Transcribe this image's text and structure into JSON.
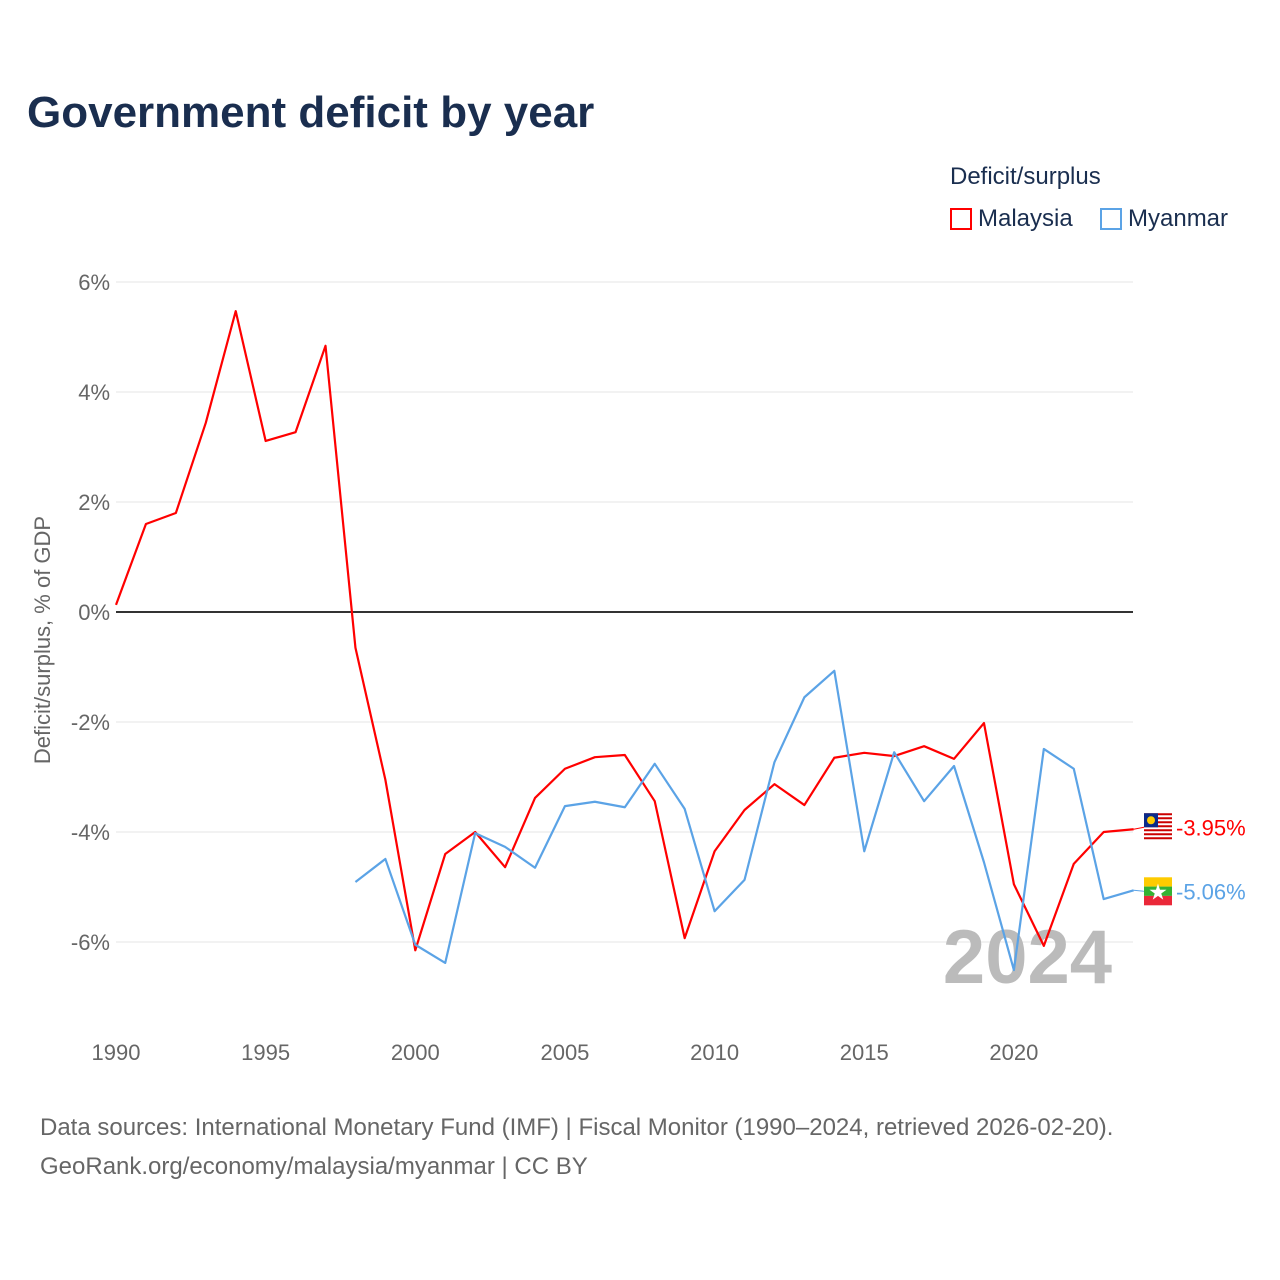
{
  "title": "Government deficit by year",
  "legend": {
    "title": "Deficit/surplus",
    "items": [
      {
        "name": "Malaysia",
        "color": "#ff0000"
      },
      {
        "name": "Myanmar",
        "color": "#5ba3e6"
      }
    ]
  },
  "source_lines": [
    "Data sources: International Monetary Fund (IMF) | Fiscal Monitor (1990–2024, retrieved 2026-02-20).",
    "GeoRank.org/economy/malaysia/myanmar | CC BY"
  ],
  "chart_data": {
    "type": "line",
    "title": "Government deficit by year",
    "xlabel": "",
    "ylabel": "Deficit/surplus, % of GDP",
    "xlim": [
      1990,
      2024
    ],
    "ylim": [
      -7,
      6
    ],
    "yticks": [
      6,
      4,
      2,
      0,
      -2,
      -4,
      -6
    ],
    "ytick_labels": [
      "6%",
      "4%",
      "2%",
      "0%",
      "-2%",
      "-4%",
      "-6%"
    ],
    "xticks": [
      1990,
      1995,
      2000,
      2005,
      2010,
      2015,
      2020
    ],
    "xtick_labels": [
      "1990",
      "1995",
      "2000",
      "2005",
      "2010",
      "2015",
      "2020"
    ],
    "year_watermark": "2024",
    "series": [
      {
        "name": "Malaysia",
        "color": "#ff0000",
        "end_label": "-3.95%",
        "x_start": 1990,
        "values": [
          0.13,
          1.6,
          1.8,
          3.44,
          5.47,
          3.11,
          3.27,
          4.84,
          -0.65,
          -3.05,
          -6.15,
          -4.4,
          -4.0,
          -4.64,
          -3.38,
          -2.85,
          -2.64,
          -2.6,
          -3.44,
          -5.93,
          -4.35,
          -3.6,
          -3.13,
          -3.51,
          -2.65,
          -2.56,
          -2.62,
          -2.44,
          -2.67,
          -2.02,
          -4.95,
          -6.07,
          -4.58,
          -4.0,
          -3.95
        ]
      },
      {
        "name": "Myanmar",
        "color": "#5ba3e6",
        "end_label": "-5.06%",
        "x_start": 1998,
        "values": [
          -4.91,
          -4.49,
          -6.05,
          -6.38,
          -4.02,
          -4.27,
          -4.65,
          -3.53,
          -3.45,
          -3.55,
          -2.76,
          -3.58,
          -5.44,
          -4.87,
          -2.73,
          -1.55,
          -1.07,
          -4.35,
          -2.55,
          -3.44,
          -2.8,
          -4.55,
          -6.51,
          -2.49,
          -2.85,
          -5.22,
          -5.06
        ]
      }
    ]
  }
}
